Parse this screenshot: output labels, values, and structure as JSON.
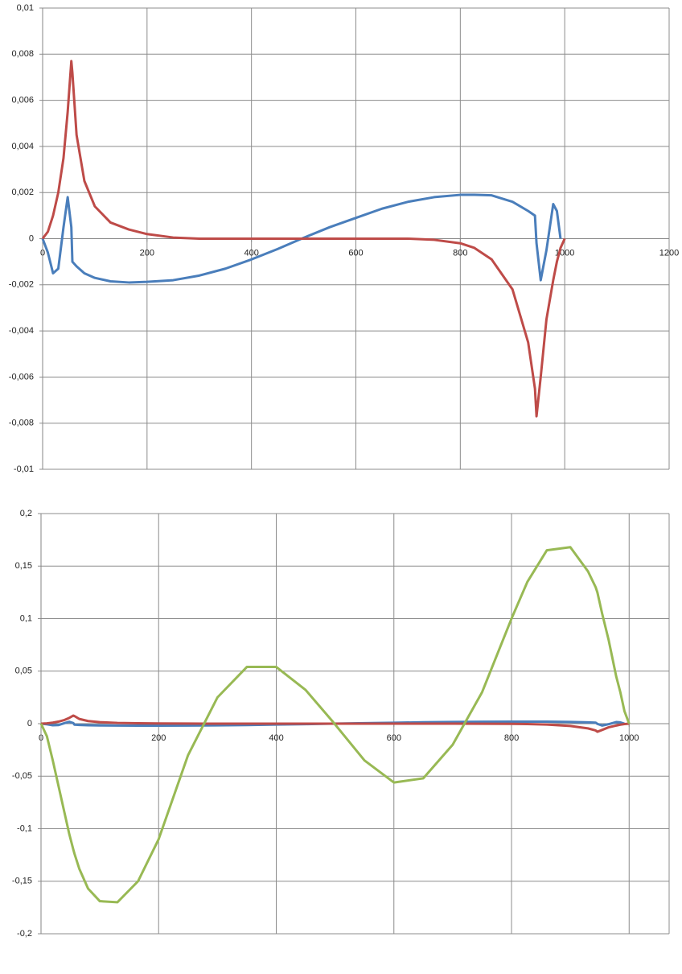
{
  "chart_data": [
    {
      "type": "line",
      "x": [
        0,
        10,
        20,
        30,
        40,
        48,
        55,
        57,
        65,
        80,
        100,
        130,
        165,
        200,
        250,
        300,
        350,
        400,
        450,
        496,
        550,
        600,
        650,
        700,
        750,
        800,
        827,
        860,
        900,
        930,
        943,
        946,
        954,
        965,
        978,
        985,
        992,
        1000
      ],
      "series": [
        {
          "color": "#4a7ebb",
          "values": [
            0,
            -0.0006,
            -0.0015,
            -0.0013,
            0.0005,
            0.0018,
            0.0005,
            -0.001,
            -0.0012,
            -0.0015,
            -0.0017,
            -0.00185,
            -0.0019,
            -0.00187,
            -0.0018,
            -0.0016,
            -0.0013,
            -0.0009,
            -0.00045,
            0,
            0.0005,
            0.0009,
            0.0013,
            0.0016,
            0.0018,
            0.0019,
            0.0019,
            0.00188,
            0.0016,
            0.0012,
            0.001,
            -0.0002,
            -0.0018,
            -0.0005,
            0.0015,
            0.0012,
            0,
            null
          ]
        },
        {
          "color": "#be4b48",
          "values": [
            0,
            0.0003,
            0.001,
            0.002,
            0.0035,
            0.0055,
            0.0077,
            0.0072,
            0.0045,
            0.0025,
            0.0014,
            0.0007,
            0.0004,
            0.0002,
            5e-05,
            0,
            0,
            0,
            0,
            0,
            0,
            0,
            0,
            0,
            -5e-05,
            -0.0002,
            -0.0004,
            -0.0009,
            -0.0022,
            -0.0045,
            -0.0065,
            -0.0077,
            -0.006,
            -0.0035,
            -0.0018,
            -0.001,
            -0.0004,
            0
          ]
        }
      ],
      "xlim": [
        0,
        1200
      ],
      "xticks": [
        0,
        200,
        400,
        600,
        800,
        1000,
        1200
      ],
      "ylim": [
        -0.01,
        0.01
      ],
      "yticks": [
        {
          "value": -0.01,
          "label": "-0,01"
        },
        {
          "value": -0.008,
          "label": "-0,008"
        },
        {
          "value": -0.006,
          "label": "-0,006"
        },
        {
          "value": -0.004,
          "label": "-0,004"
        },
        {
          "value": -0.002,
          "label": "-0,002"
        },
        0,
        {
          "value": 0.002,
          "label": "0,002"
        },
        {
          "value": 0.004,
          "label": "0,004"
        },
        {
          "value": 0.006,
          "label": "0,006"
        },
        {
          "value": 0.008,
          "label": "0,008"
        },
        {
          "value": 0.01,
          "label": "0,01"
        }
      ],
      "grid": true
    },
    {
      "type": "line",
      "x": [
        0,
        10,
        20,
        30,
        40,
        48,
        55,
        57,
        65,
        80,
        100,
        130,
        165,
        200,
        250,
        300,
        350,
        400,
        450,
        496,
        550,
        600,
        650,
        700,
        750,
        800,
        827,
        860,
        900,
        930,
        943,
        946,
        954,
        965,
        978,
        985,
        992,
        1000
      ],
      "series": [
        {
          "color": "#4a7ebb",
          "values": [
            0,
            -0.0006,
            -0.0015,
            -0.0013,
            0.0005,
            0.0018,
            0.0005,
            -0.001,
            -0.0012,
            -0.0015,
            -0.0017,
            -0.00185,
            -0.0019,
            -0.00187,
            -0.0018,
            -0.0016,
            -0.0013,
            -0.0009,
            -0.00045,
            0,
            0.0005,
            0.0009,
            0.0013,
            0.0016,
            0.0018,
            0.0019,
            0.0019,
            0.00188,
            0.0016,
            0.0012,
            0.001,
            -0.0002,
            -0.0018,
            -0.0005,
            0.0015,
            0.0012,
            0,
            null
          ]
        },
        {
          "color": "#be4b48",
          "values": [
            0,
            0.0003,
            0.001,
            0.002,
            0.0035,
            0.0055,
            0.0077,
            0.0072,
            0.0045,
            0.0025,
            0.0014,
            0.0007,
            0.0004,
            0.0002,
            5e-05,
            0,
            0,
            0,
            0,
            0,
            0,
            0,
            0,
            0,
            -5e-05,
            -0.0002,
            -0.0004,
            -0.0009,
            -0.0022,
            -0.0045,
            -0.0065,
            -0.0077,
            -0.006,
            -0.0035,
            -0.0018,
            -0.001,
            -0.0004,
            0
          ]
        },
        {
          "color": "#98b954",
          "values": [
            0,
            -0.012,
            -0.035,
            -0.06,
            -0.085,
            -0.105,
            -0.12,
            -0.124,
            -0.138,
            -0.157,
            -0.169,
            -0.17,
            -0.15,
            -0.11,
            -0.03,
            0.025,
            0.054,
            0.054,
            0.032,
            0.002,
            -0.035,
            -0.056,
            -0.052,
            -0.02,
            0.03,
            0.1,
            0.135,
            0.165,
            0.168,
            0.145,
            0.13,
            0.125,
            0.105,
            0.08,
            0.045,
            0.03,
            0.012,
            0
          ]
        }
      ],
      "xlim": [
        0,
        1068
      ],
      "xticks": [
        0,
        200,
        400,
        600,
        800,
        1000
      ],
      "ylim": [
        -0.2,
        0.2
      ],
      "yticks": [
        {
          "value": -0.2,
          "label": "-0,2"
        },
        {
          "value": -0.15,
          "label": "-0,15"
        },
        {
          "value": -0.1,
          "label": "-0,1"
        },
        {
          "value": -0.05,
          "label": "-0,05"
        },
        0,
        {
          "value": 0.05,
          "label": "0,05"
        },
        {
          "value": 0.1,
          "label": "0,1"
        },
        {
          "value": 0.15,
          "label": "0,15"
        },
        {
          "value": 0.2,
          "label": "0,2"
        }
      ],
      "grid": true
    }
  ]
}
